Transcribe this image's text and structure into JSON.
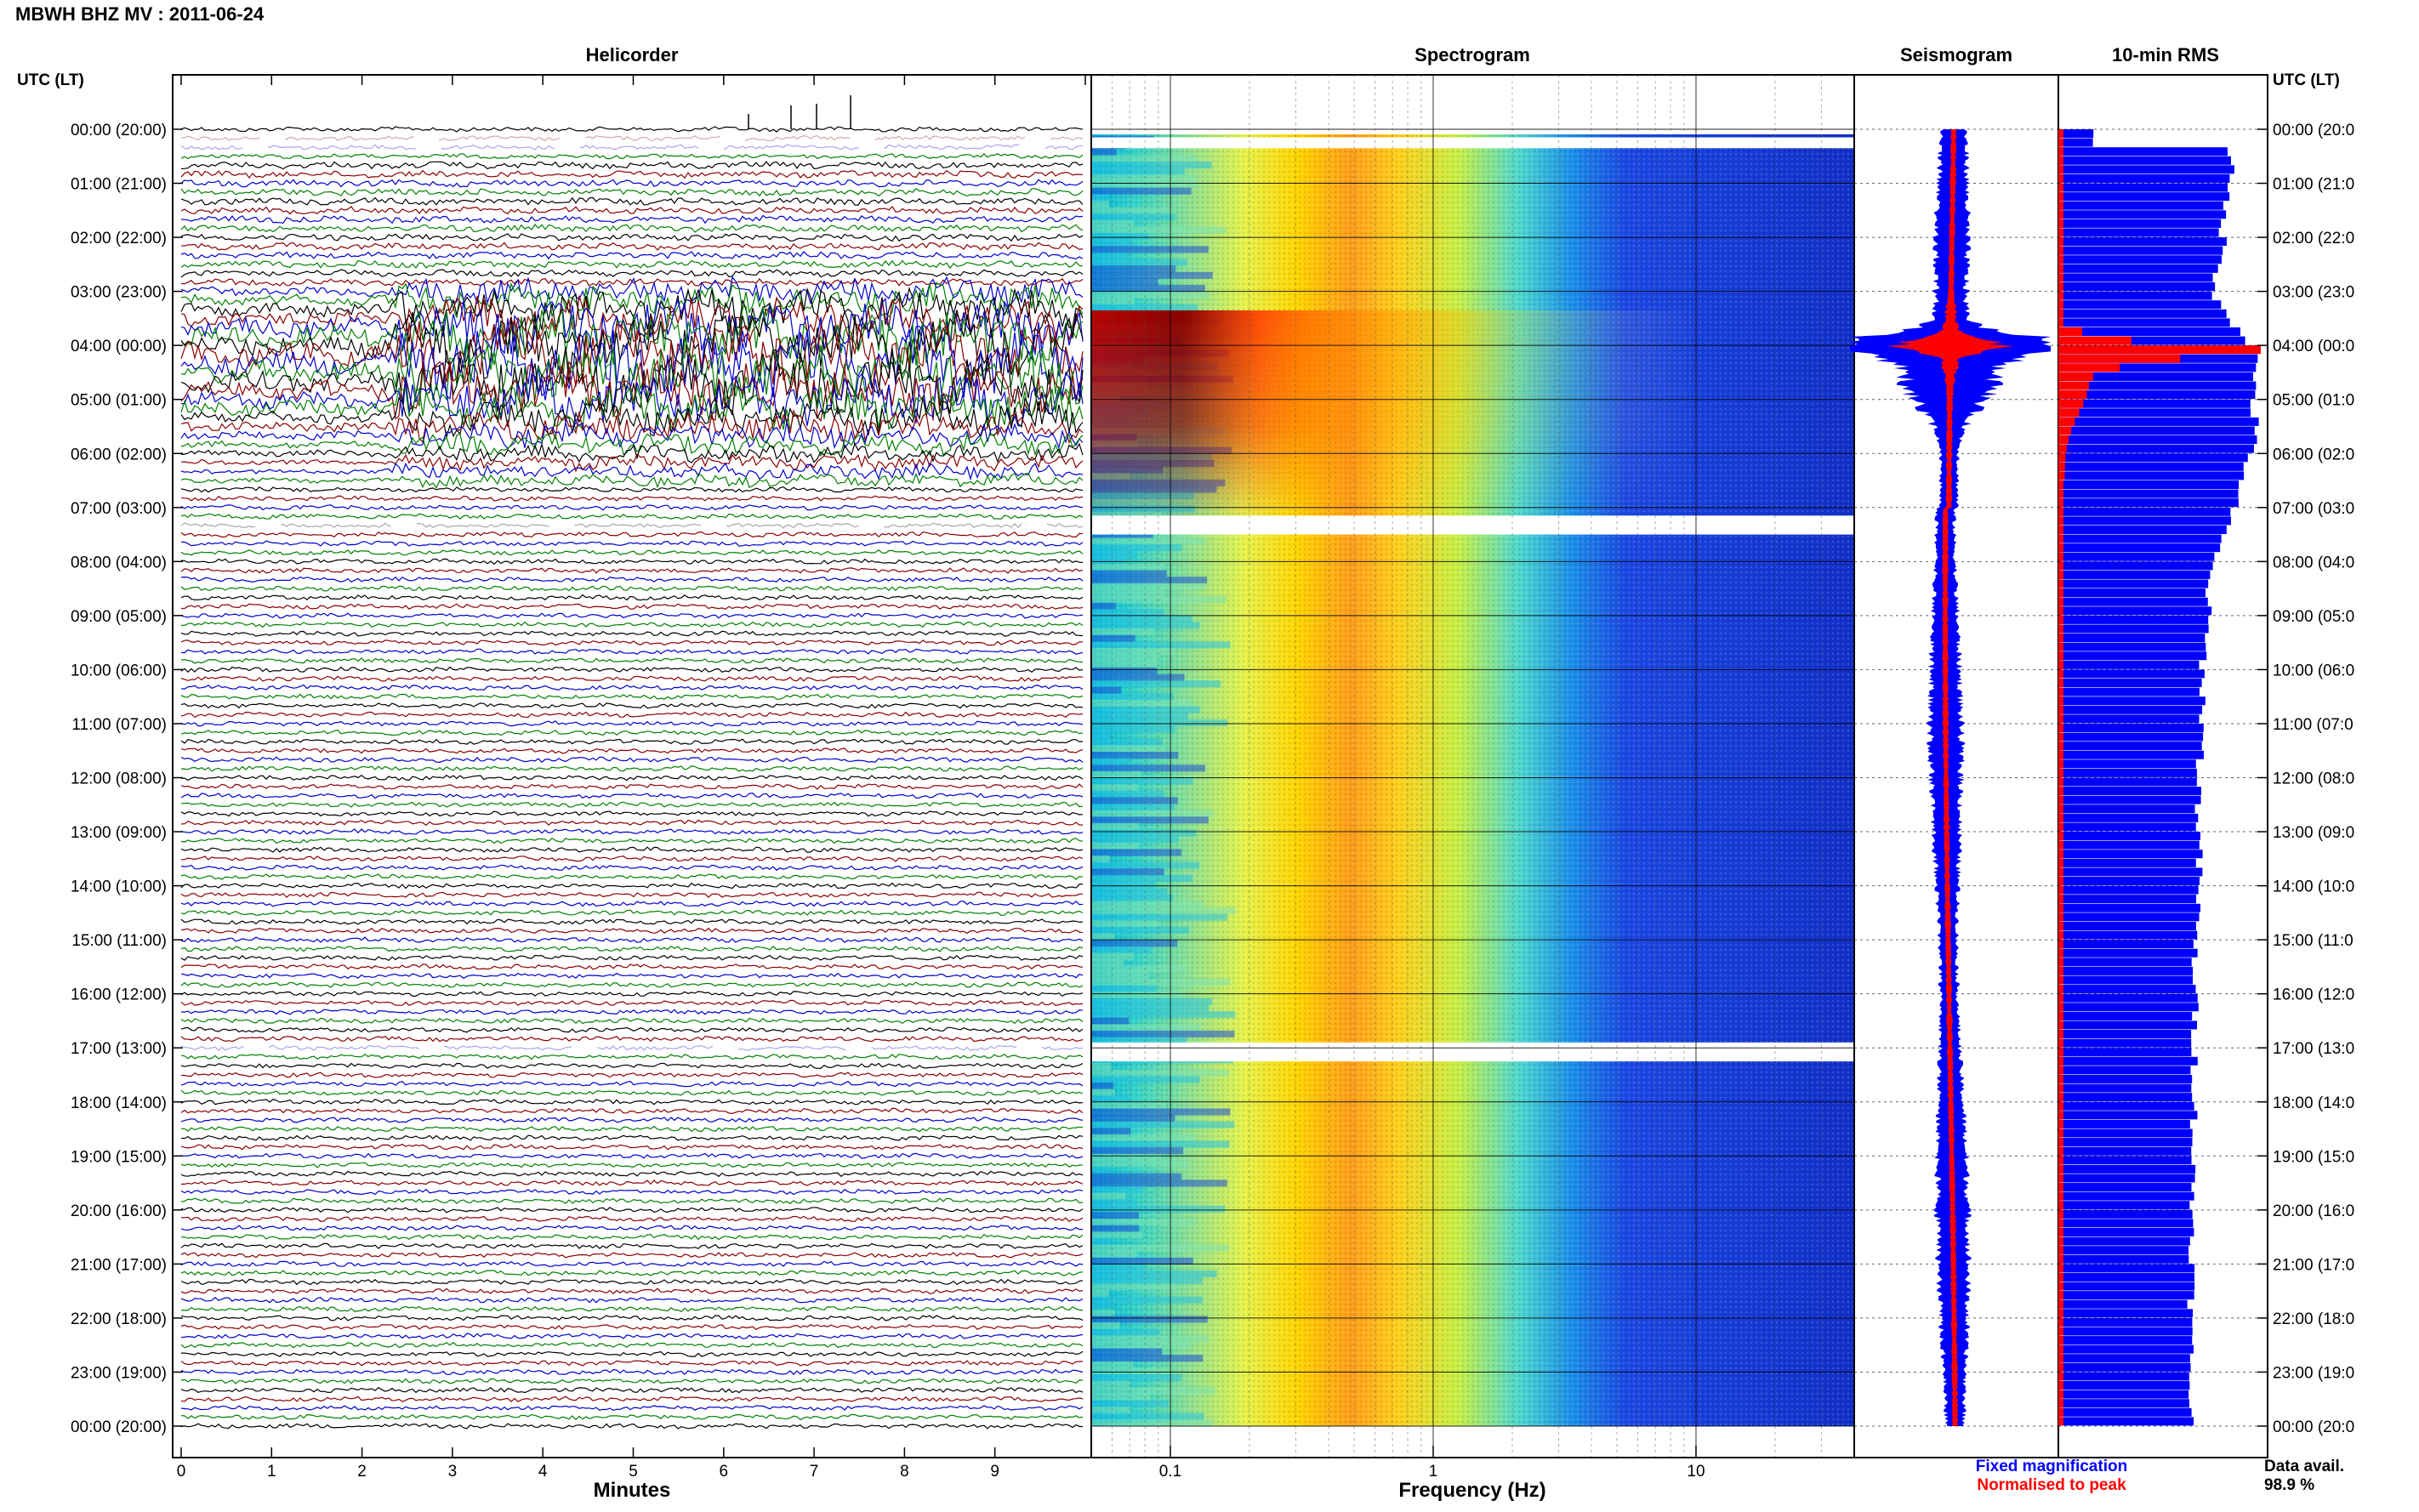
{
  "header": {
    "title": "MBWH BHZ MV : 2011-06-24"
  },
  "panels": {
    "helicorder": "Helicorder",
    "spectrogram": "Spectrogram",
    "seismogram": "Seismogram",
    "rms": "10-min RMS"
  },
  "axes": {
    "left_header": "UTC (LT)",
    "right_header": "UTC (LT)",
    "time_labels": [
      "00:00 (20:00)",
      "01:00 (21:00)",
      "02:00 (22:00)",
      "03:00 (23:00)",
      "04:00 (00:00)",
      "05:00 (01:00)",
      "06:00 (02:00)",
      "07:00 (03:00)",
      "08:00 (04:00)",
      "09:00 (05:00)",
      "10:00 (06:00)",
      "11:00 (07:00)",
      "12:00 (08:00)",
      "13:00 (09:00)",
      "14:00 (10:00)",
      "15:00 (11:00)",
      "16:00 (12:00)",
      "17:00 (13:00)",
      "18:00 (14:00)",
      "19:00 (15:00)",
      "20:00 (16:00)",
      "21:00 (17:00)",
      "22:00 (18:00)",
      "23:00 (19:00)",
      "00:00 (20:00)"
    ],
    "right_time_labels": [
      "00:00 (20:0",
      "01:00 (21:0",
      "02:00 (22:0",
      "03:00 (23:0",
      "04:00 (00:0",
      "05:00 (01:0",
      "06:00 (02:0",
      "07:00 (03:0",
      "08:00 (04:0",
      "09:00 (05:0",
      "10:00 (06:0",
      "11:00 (07:0",
      "12:00 (08:0",
      "13:00 (09:0",
      "14:00 (10:0",
      "15:00 (11:0",
      "16:00 (12:0",
      "17:00 (13:0",
      "18:00 (14:0",
      "19:00 (15:0",
      "20:00 (16:0",
      "21:00 (17:0",
      "22:00 (18:0",
      "23:00 (19:0",
      "00:00 (20:0"
    ],
    "minutes_ticks": [
      "0",
      "1",
      "2",
      "3",
      "4",
      "5",
      "6",
      "7",
      "8",
      "9"
    ],
    "minutes_label": "Minutes",
    "freq_ticks": [
      "0.1",
      "1",
      "10"
    ],
    "freq_label": "Frequency (Hz)"
  },
  "legend": {
    "fixed": "Fixed magnification",
    "normalised": "Normalised to peak",
    "fixed_color": "#0000ff",
    "normalised_color": "#ff0000"
  },
  "availability": {
    "label": "Data avail.",
    "value": "98.9 %"
  },
  "colors": {
    "trace_cycle": [
      "#000000",
      "#8b0000",
      "#0000cd",
      "#008000"
    ],
    "seismogram_fixed": "#0000ff",
    "seismogram_norm": "#ff0000",
    "rms_bar": "#0000ff",
    "rms_bar_norm": "#ff0000"
  },
  "chart_data": [
    {
      "type": "line",
      "panel": "helicorder",
      "xlabel": "Minutes",
      "xlim": [
        0,
        10
      ],
      "ylim": [
        0,
        24
      ],
      "y_unit": "hours UTC",
      "note_features": {
        "gaps_hours": [
          0.25,
          7.35,
          17.0
        ],
        "strong_tremor_hours": [
          3.0,
          6.5
        ]
      }
    },
    {
      "type": "heatmap",
      "panel": "spectrogram",
      "xlabel": "Frequency (Hz)",
      "xscale": "log",
      "xlim": [
        0.05,
        40
      ],
      "ylim": [
        0,
        24
      ],
      "features": {
        "peak_energy_band_hz": [
          0.2,
          0.5
        ],
        "event_hours": [
          3.5,
          6.3
        ],
        "gaps_hours": [
          [
            0.15,
            0.35
          ],
          [
            7.15,
            7.5
          ],
          [
            16.9,
            17.25
          ]
        ]
      }
    },
    {
      "type": "line",
      "panel": "seismogram",
      "series": [
        {
          "name": "Fixed magnification",
          "peak_hour": 4.0
        },
        {
          "name": "Normalised to peak",
          "peak_hour": 4.0
        }
      ]
    },
    {
      "type": "bar",
      "panel": "rms",
      "orientation": "horizontal",
      "interval_minutes": 10,
      "hours": [
        0,
        1,
        2,
        3,
        4,
        5,
        6,
        7,
        8,
        9,
        10,
        11,
        12,
        13,
        14,
        15,
        16,
        17,
        18,
        19,
        20,
        21,
        22,
        23
      ],
      "values_relative": [
        0.88,
        0.84,
        0.82,
        0.78,
        0.98,
        0.98,
        0.96,
        0.86,
        0.76,
        0.74,
        0.72,
        0.72,
        0.7,
        0.7,
        0.7,
        0.68,
        0.68,
        0.68,
        0.68,
        0.67,
        0.67,
        0.67,
        0.66,
        0.66
      ],
      "normalised_values_relative": [
        0.0,
        0.0,
        0.0,
        0.0,
        0.4,
        0.06,
        0.01,
        0.0,
        0.0,
        0.0,
        0.0,
        0.0,
        0.0,
        0.0,
        0.0,
        0.0,
        0.0,
        0.0,
        0.0,
        0.0,
        0.0,
        0.0,
        0.0,
        0.0
      ]
    }
  ]
}
